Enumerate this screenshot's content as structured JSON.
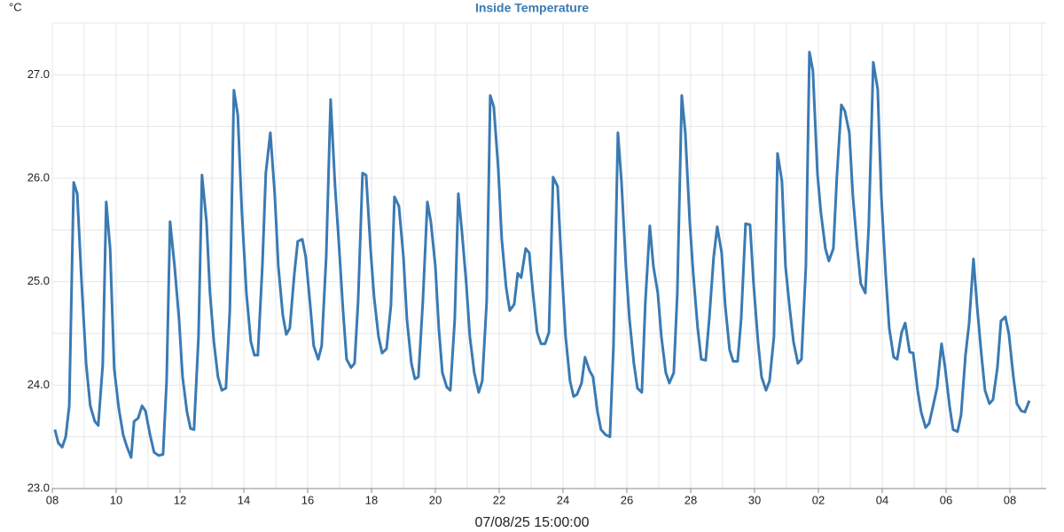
{
  "chart_data": {
    "type": "line",
    "title": "Inside Temperature",
    "y_label": "°C",
    "x_label": "07/08/25 15:00:00",
    "xlim": [
      0,
      31.14
    ],
    "xticks": [
      {
        "value": 0,
        "label": "08"
      },
      {
        "value": 2,
        "label": "10"
      },
      {
        "value": 4,
        "label": "12"
      },
      {
        "value": 6,
        "label": "14"
      },
      {
        "value": 8,
        "label": "16"
      },
      {
        "value": 10,
        "label": "18"
      },
      {
        "value": 12,
        "label": "20"
      },
      {
        "value": 14,
        "label": "22"
      },
      {
        "value": 16,
        "label": "24"
      },
      {
        "value": 18,
        "label": "26"
      },
      {
        "value": 20,
        "label": "28"
      },
      {
        "value": 22,
        "label": "30"
      },
      {
        "value": 24,
        "label": "02"
      },
      {
        "value": 26,
        "label": "04"
      },
      {
        "value": 28,
        "label": "06"
      },
      {
        "value": 30,
        "label": "08"
      }
    ],
    "xminor": [
      1,
      3,
      5,
      7,
      9,
      11,
      13,
      15,
      17,
      19,
      21,
      23,
      25,
      27,
      29,
      31
    ],
    "ylim": [
      23,
      27.5
    ],
    "yticks": [
      {
        "value": 23,
        "label": "23.0"
      },
      {
        "value": 24,
        "label": "24.0"
      },
      {
        "value": 25,
        "label": "25.0"
      },
      {
        "value": 26,
        "label": "26.0"
      },
      {
        "value": 27,
        "label": "27.0"
      }
    ],
    "yminor": [
      23.5,
      24.5,
      25.5,
      26.5,
      27.5
    ],
    "grid": true,
    "series": [
      {
        "name": "Inside Temperature",
        "color": "#3a7ab3",
        "x": [
          0.08,
          0.19,
          0.31,
          0.42,
          0.53,
          0.67,
          0.78,
          0.92,
          1.06,
          1.19,
          1.33,
          1.44,
          1.58,
          1.69,
          1.81,
          1.94,
          2.08,
          2.22,
          2.33,
          2.47,
          2.56,
          2.69,
          2.81,
          2.92,
          3.06,
          3.19,
          3.33,
          3.47,
          3.58,
          3.69,
          3.83,
          3.97,
          4.08,
          4.22,
          4.33,
          4.44,
          4.58,
          4.69,
          4.83,
          4.94,
          5.06,
          5.19,
          5.31,
          5.44,
          5.56,
          5.69,
          5.81,
          5.94,
          6.08,
          6.22,
          6.33,
          6.44,
          6.58,
          6.69,
          6.83,
          6.97,
          7.08,
          7.22,
          7.33,
          7.44,
          7.58,
          7.69,
          7.83,
          7.94,
          8.08,
          8.19,
          8.33,
          8.44,
          8.58,
          8.72,
          8.86,
          8.97,
          9.11,
          9.22,
          9.36,
          9.47,
          9.58,
          9.72,
          9.83,
          9.97,
          10.08,
          10.22,
          10.33,
          10.47,
          10.61,
          10.72,
          10.86,
          11.0,
          11.11,
          11.25,
          11.36,
          11.47,
          11.61,
          11.75,
          11.86,
          12.0,
          12.11,
          12.22,
          12.36,
          12.47,
          12.61,
          12.72,
          12.83,
          12.97,
          13.08,
          13.22,
          13.36,
          13.47,
          13.61,
          13.72,
          13.83,
          13.97,
          14.08,
          14.22,
          14.33,
          14.47,
          14.58,
          14.69,
          14.83,
          14.94,
          15.06,
          15.19,
          15.31,
          15.44,
          15.56,
          15.69,
          15.83,
          15.94,
          16.08,
          16.22,
          16.33,
          16.44,
          16.58,
          16.69,
          16.83,
          16.94,
          17.08,
          17.19,
          17.33,
          17.47,
          17.58,
          17.72,
          17.83,
          17.97,
          18.08,
          18.22,
          18.33,
          18.47,
          18.58,
          18.72,
          18.83,
          18.97,
          19.08,
          19.22,
          19.33,
          19.47,
          19.58,
          19.72,
          19.83,
          19.97,
          20.08,
          20.22,
          20.33,
          20.47,
          20.58,
          20.72,
          20.83,
          20.97,
          21.08,
          21.22,
          21.33,
          21.47,
          21.58,
          21.72,
          21.86,
          21.97,
          22.11,
          22.22,
          22.36,
          22.47,
          22.61,
          22.72,
          22.86,
          22.97,
          23.11,
          23.22,
          23.36,
          23.47,
          23.61,
          23.72,
          23.83,
          23.97,
          24.08,
          24.22,
          24.33,
          24.47,
          24.58,
          24.72,
          24.83,
          24.97,
          25.08,
          25.22,
          25.33,
          25.47,
          25.58,
          25.72,
          25.86,
          25.97,
          26.11,
          26.22,
          26.36,
          26.47,
          26.61,
          26.72,
          26.86,
          26.97,
          27.11,
          27.22,
          27.36,
          27.47,
          27.61,
          27.72,
          27.86,
          27.97,
          28.11,
          28.22,
          28.36,
          28.47,
          28.61,
          28.72,
          28.86,
          28.97,
          29.11,
          29.22,
          29.36,
          29.47,
          29.61,
          29.72,
          29.86,
          29.97,
          30.11,
          30.22,
          30.36,
          30.47,
          30.61
        ],
        "values": [
          23.57,
          23.44,
          23.4,
          23.5,
          23.8,
          25.96,
          25.85,
          24.98,
          24.2,
          23.8,
          23.65,
          23.61,
          24.2,
          25.77,
          25.32,
          24.16,
          23.78,
          23.52,
          23.41,
          23.3,
          23.65,
          23.68,
          23.8,
          23.75,
          23.52,
          23.35,
          23.32,
          23.33,
          24.04,
          25.58,
          25.15,
          24.64,
          24.08,
          23.74,
          23.58,
          23.57,
          24.47,
          26.03,
          25.58,
          24.89,
          24.42,
          24.08,
          23.95,
          23.97,
          24.72,
          26.85,
          26.61,
          25.67,
          24.89,
          24.42,
          24.29,
          24.29,
          25.15,
          26.05,
          26.44,
          25.84,
          25.15,
          24.68,
          24.49,
          24.55,
          25.07,
          25.39,
          25.41,
          25.24,
          24.77,
          24.38,
          24.25,
          24.38,
          25.24,
          26.76,
          25.92,
          25.41,
          24.72,
          24.25,
          24.17,
          24.21,
          24.81,
          26.05,
          26.03,
          25.32,
          24.85,
          24.47,
          24.31,
          24.35,
          24.77,
          25.82,
          25.73,
          25.24,
          24.64,
          24.21,
          24.06,
          24.08,
          24.81,
          25.77,
          25.58,
          25.15,
          24.55,
          24.12,
          23.98,
          23.95,
          24.64,
          25.85,
          25.49,
          24.98,
          24.47,
          24.12,
          23.93,
          24.04,
          24.81,
          26.8,
          26.69,
          26.1,
          25.41,
          24.94,
          24.72,
          24.78,
          25.08,
          25.04,
          25.32,
          25.28,
          24.89,
          24.51,
          24.4,
          24.4,
          24.51,
          26.01,
          25.92,
          25.24,
          24.47,
          24.04,
          23.89,
          23.91,
          24.02,
          24.27,
          24.14,
          24.08,
          23.74,
          23.57,
          23.52,
          23.5,
          24.38,
          26.44,
          25.97,
          25.15,
          24.64,
          24.21,
          23.97,
          23.93,
          24.81,
          25.54,
          25.15,
          24.89,
          24.47,
          24.12,
          24.02,
          24.12,
          24.89,
          26.8,
          26.44,
          25.58,
          25.07,
          24.55,
          24.25,
          24.24,
          24.64,
          25.24,
          25.53,
          25.28,
          24.77,
          24.34,
          24.23,
          24.23,
          24.64,
          25.56,
          25.55,
          24.98,
          24.42,
          24.08,
          23.95,
          24.04,
          24.47,
          26.24,
          25.97,
          25.15,
          24.72,
          24.42,
          24.21,
          24.25,
          25.15,
          27.22,
          27.04,
          26.05,
          25.67,
          25.32,
          25.2,
          25.32,
          26.01,
          26.71,
          26.65,
          26.44,
          25.84,
          25.32,
          24.98,
          24.89,
          25.54,
          27.12,
          26.86,
          25.84,
          25.07,
          24.55,
          24.27,
          24.25,
          24.51,
          24.6,
          24.32,
          24.31,
          23.95,
          23.74,
          23.59,
          23.63,
          23.82,
          23.98,
          24.4,
          24.17,
          23.8,
          23.57,
          23.55,
          23.71,
          24.29,
          24.59,
          25.22,
          24.77,
          24.29,
          23.95,
          23.82,
          23.86,
          24.17,
          24.62,
          24.66,
          24.49,
          24.08,
          23.82,
          23.75,
          23.74,
          23.85
        ]
      }
    ]
  }
}
